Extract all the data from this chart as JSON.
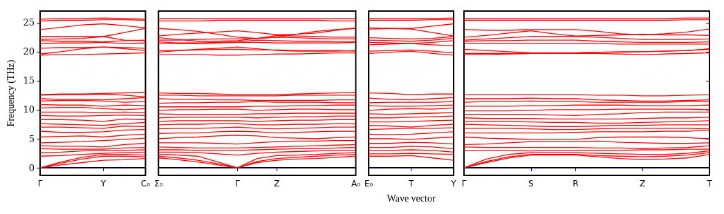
{
  "chart_data": [
    {
      "type": "line",
      "ylabel": "Frequency (THz)",
      "categories": [
        "Γ",
        null,
        null,
        "Y",
        null,
        "C₀"
      ],
      "ylim": [
        -1.3,
        27
      ],
      "yticks": [
        0,
        5,
        10,
        15,
        20,
        25
      ],
      "marker": "none",
      "line_style": "solid",
      "ref_lines": [
        {
          "axis": "y",
          "value": 0,
          "color": "#0000ff",
          "line_style": "dotted"
        }
      ],
      "series": [
        {
          "color": "#ff0000",
          "values": [
            0,
            0.5,
            0.9,
            1.3,
            1.4,
            1.6
          ]
        },
        {
          "color": "#ff0000",
          "values": [
            0,
            0.8,
            1.5,
            2.0,
            2.0,
            1.9
          ]
        },
        {
          "color": "#ff0000",
          "values": [
            0,
            1.0,
            1.8,
            2.3,
            2.3,
            2.2
          ]
        },
        {
          "color": "#ff0000",
          "values": [
            2.0,
            2.1,
            2.3,
            2.5,
            2.6,
            2.7
          ]
        },
        {
          "color": "#ff0000",
          "values": [
            2.6,
            2.7,
            2.9,
            3.0,
            3.0,
            3.1
          ]
        },
        {
          "color": "#ff0000",
          "values": [
            3.3,
            3.2,
            3.2,
            3.2,
            3.4,
            3.5
          ]
        },
        {
          "color": "#ff0000",
          "values": [
            3.8,
            3.7,
            3.7,
            3.6,
            4.0,
            4.2
          ]
        },
        {
          "color": "#ff0000",
          "values": [
            4.3,
            4.4,
            4.5,
            4.7,
            4.9,
            5.1
          ]
        },
        {
          "color": "#ff0000",
          "values": [
            5.3,
            5.4,
            5.5,
            5.3,
            5.6,
            5.8
          ]
        },
        {
          "color": "#ff0000",
          "values": [
            6.3,
            6.1,
            6.1,
            6.2,
            6.5,
            6.6
          ]
        },
        {
          "color": "#ff0000",
          "values": [
            7.0,
            7.0,
            6.9,
            6.8,
            7.2,
            7.1
          ]
        },
        {
          "color": "#ff0000",
          "values": [
            7.6,
            7.5,
            7.4,
            7.3,
            7.6,
            7.8
          ]
        },
        {
          "color": "#ff0000",
          "values": [
            8.3,
            8.3,
            8.2,
            8.0,
            8.4,
            8.3
          ]
        },
        {
          "color": "#ff0000",
          "values": [
            9.0,
            8.9,
            8.9,
            9.0,
            9.1,
            9.0
          ]
        },
        {
          "color": "#ff0000",
          "values": [
            9.6,
            9.6,
            9.6,
            9.5,
            9.6,
            9.5
          ]
        },
        {
          "color": "#ff0000",
          "values": [
            10.3,
            10.4,
            10.4,
            10.2,
            10.0,
            10.2
          ]
        },
        {
          "color": "#ff0000",
          "values": [
            10.9,
            10.8,
            10.8,
            10.6,
            10.8,
            10.7
          ]
        },
        {
          "color": "#ff0000",
          "values": [
            11.5,
            11.6,
            11.6,
            11.5,
            11.3,
            11.4
          ]
        },
        {
          "color": "#ff0000",
          "values": [
            11.9,
            11.8,
            11.8,
            11.7,
            11.9,
            12.1
          ]
        },
        {
          "color": "#ff0000",
          "values": [
            12.5,
            12.6,
            12.6,
            12.7,
            12.5,
            12.2
          ]
        },
        {
          "color": "#ff0000",
          "values": [
            12.6,
            12.7,
            12.7,
            12.8,
            12.9,
            13.0
          ]
        },
        {
          "color": "#ff0000",
          "values": [
            19.4,
            19.5,
            19.5,
            19.6,
            19.7,
            19.8
          ]
        },
        {
          "color": "#ff0000",
          "values": [
            19.6,
            20.0,
            20.5,
            20.8,
            20.5,
            20.2
          ]
        },
        {
          "color": "#ff0000",
          "values": [
            20.6,
            20.7,
            20.7,
            20.8,
            20.7,
            20.6
          ]
        },
        {
          "color": "#ff0000",
          "values": [
            21.4,
            21.5,
            21.5,
            21.6,
            21.4,
            21.5
          ]
        },
        {
          "color": "#ff0000",
          "values": [
            21.9,
            21.8,
            21.8,
            21.7,
            21.9,
            22.0
          ]
        },
        {
          "color": "#ff0000",
          "values": [
            22.1,
            22.2,
            22.3,
            22.6,
            22.0,
            21.9
          ]
        },
        {
          "color": "#ff0000",
          "values": [
            22.6,
            22.6,
            22.6,
            22.6,
            23.3,
            24.0
          ]
        },
        {
          "color": "#ff0000",
          "values": [
            23.8,
            24.2,
            24.6,
            24.8,
            24.5,
            24.1
          ]
        },
        {
          "color": "#ff0000",
          "values": [
            25.3,
            25.4,
            25.4,
            25.5,
            25.5,
            25.4
          ]
        },
        {
          "color": "#ff0000",
          "values": [
            25.6,
            25.7,
            25.7,
            25.8,
            25.7,
            25.6
          ]
        }
      ]
    },
    {
      "type": "line",
      "categories": [
        "Σ₀",
        null,
        null,
        null,
        "Γ",
        null,
        "Z",
        null,
        null,
        null,
        "A₀"
      ],
      "ylim": [
        -1.3,
        27
      ],
      "yticks": [
        0,
        5,
        10,
        15,
        20,
        25
      ],
      "tick_labels": "x",
      "marker": "none",
      "line_style": "solid",
      "ref_lines": [
        {
          "axis": "y",
          "value": 0,
          "color": "#0000ff",
          "line_style": "dotted"
        }
      ],
      "series": [
        {
          "color": "#ff0000",
          "values": [
            1.7,
            1.4,
            1.0,
            0.5,
            0,
            0.9,
            1.3,
            1.5,
            1.6,
            1.8,
            2.0
          ]
        },
        {
          "color": "#ff0000",
          "values": [
            2.0,
            1.7,
            1.3,
            0.7,
            0,
            1.1,
            1.6,
            1.8,
            2.0,
            2.2,
            2.3
          ]
        },
        {
          "color": "#ff0000",
          "values": [
            2.3,
            2.2,
            2.0,
            1.0,
            0,
            1.6,
            2.1,
            2.2,
            2.3,
            2.5,
            2.6
          ]
        },
        {
          "color": "#ff0000",
          "values": [
            2.7,
            2.7,
            2.6,
            2.4,
            2.2,
            2.5,
            2.7,
            2.8,
            2.9,
            3.0,
            3.0
          ]
        },
        {
          "color": "#ff0000",
          "values": [
            3.1,
            3.1,
            3.0,
            3.0,
            3.0,
            3.1,
            3.2,
            3.3,
            3.3,
            3.4,
            3.5
          ]
        },
        {
          "color": "#ff0000",
          "values": [
            3.6,
            3.5,
            3.4,
            3.4,
            3.4,
            3.5,
            3.6,
            3.7,
            3.8,
            3.9,
            4.0
          ]
        },
        {
          "color": "#ff0000",
          "values": [
            4.3,
            4.3,
            4.3,
            4.2,
            4.1,
            4.3,
            4.5,
            4.6,
            4.6,
            4.7,
            4.7
          ]
        },
        {
          "color": "#ff0000",
          "values": [
            5.0,
            5.2,
            5.3,
            5.5,
            5.6,
            5.5,
            5.2,
            5.1,
            5.0,
            5.2,
            5.3
          ]
        },
        {
          "color": "#ff0000",
          "values": [
            5.9,
            6.0,
            6.0,
            6.2,
            6.3,
            6.2,
            6.0,
            6.1,
            6.2,
            6.3,
            6.3
          ]
        },
        {
          "color": "#ff0000",
          "values": [
            6.7,
            6.8,
            6.8,
            6.9,
            7.0,
            6.8,
            6.7,
            6.8,
            6.9,
            7.0,
            7.0
          ]
        },
        {
          "color": "#ff0000",
          "values": [
            7.4,
            7.5,
            7.5,
            7.6,
            7.6,
            7.4,
            7.4,
            7.5,
            7.5,
            7.6,
            7.6
          ]
        },
        {
          "color": "#ff0000",
          "values": [
            8.0,
            8.1,
            8.1,
            8.1,
            8.1,
            8.0,
            8.1,
            8.2,
            8.2,
            8.3,
            8.3
          ]
        },
        {
          "color": "#ff0000",
          "values": [
            8.6,
            8.7,
            8.7,
            8.7,
            8.7,
            8.6,
            8.7,
            8.8,
            8.8,
            8.9,
            8.9
          ]
        },
        {
          "color": "#ff0000",
          "values": [
            9.3,
            9.2,
            9.2,
            9.2,
            9.2,
            9.3,
            9.3,
            9.4,
            9.4,
            9.4,
            9.4
          ]
        },
        {
          "color": "#ff0000",
          "values": [
            9.9,
            10.0,
            10.0,
            10.1,
            10.1,
            9.9,
            10.0,
            10.1,
            10.1,
            10.0,
            10.0
          ]
        },
        {
          "color": "#ff0000",
          "values": [
            10.5,
            10.5,
            10.5,
            10.5,
            10.5,
            10.6,
            10.6,
            10.7,
            10.7,
            10.8,
            10.8
          ]
        },
        {
          "color": "#ff0000",
          "values": [
            11.1,
            11.2,
            11.2,
            11.3,
            11.3,
            11.4,
            11.3,
            11.3,
            11.3,
            11.2,
            11.2
          ]
        },
        {
          "color": "#ff0000",
          "values": [
            11.9,
            11.8,
            11.8,
            11.7,
            11.7,
            11.6,
            11.6,
            11.6,
            11.6,
            11.7,
            11.7
          ]
        },
        {
          "color": "#ff0000",
          "values": [
            12.5,
            12.5,
            12.4,
            12.4,
            12.4,
            12.4,
            12.4,
            12.5,
            12.5,
            12.5,
            12.5
          ]
        },
        {
          "color": "#ff0000",
          "values": [
            12.9,
            12.8,
            12.8,
            12.7,
            12.6,
            12.6,
            12.6,
            12.7,
            12.8,
            12.9,
            13.0
          ]
        },
        {
          "color": "#ff0000",
          "values": [
            19.5,
            19.5,
            19.5,
            19.4,
            19.4,
            19.5,
            19.6,
            19.6,
            19.7,
            19.8,
            19.8
          ]
        },
        {
          "color": "#ff0000",
          "values": [
            19.9,
            20.2,
            20.4,
            20.6,
            20.8,
            20.5,
            20.2,
            20.1,
            20.1,
            20.1,
            20.2
          ]
        },
        {
          "color": "#ff0000",
          "values": [
            20.2,
            20.2,
            20.3,
            20.4,
            20.4,
            20.3,
            20.3,
            20.2,
            20.2,
            20.2,
            20.1
          ]
        },
        {
          "color": "#ff0000",
          "values": [
            21.4,
            21.4,
            21.4,
            21.5,
            21.6,
            21.6,
            21.5,
            21.5,
            21.5,
            21.5,
            21.6
          ]
        },
        {
          "color": "#ff0000",
          "values": [
            21.7,
            21.5,
            21.5,
            21.6,
            21.7,
            22.0,
            21.9,
            21.8,
            21.8,
            21.7,
            21.7
          ]
        },
        {
          "color": "#ff0000",
          "values": [
            22.0,
            22.0,
            22.1,
            22.2,
            22.2,
            22.3,
            22.5,
            22.4,
            22.3,
            22.2,
            22.2
          ]
        },
        {
          "color": "#ff0000",
          "values": [
            22.4,
            22.1,
            21.8,
            21.8,
            21.9,
            22.3,
            22.8,
            22.7,
            22.6,
            22.5,
            22.5
          ]
        },
        {
          "color": "#ff0000",
          "values": [
            22.7,
            23.0,
            23.2,
            23.4,
            23.6,
            23.3,
            22.9,
            23.0,
            23.2,
            23.7,
            24.1
          ]
        },
        {
          "color": "#ff0000",
          "values": [
            24.0,
            23.8,
            23.5,
            23.0,
            22.5,
            22.3,
            22.5,
            23.0,
            23.5,
            23.8,
            24.0
          ]
        },
        {
          "color": "#ff0000",
          "values": [
            25.3,
            25.3,
            25.3,
            25.4,
            25.4,
            25.4,
            25.4,
            25.4,
            25.4,
            25.3,
            25.3
          ]
        },
        {
          "color": "#ff0000",
          "values": [
            25.7,
            25.7,
            25.7,
            25.7,
            25.7,
            25.7,
            25.7,
            25.7,
            25.7,
            25.7,
            25.7
          ]
        }
      ]
    },
    {
      "type": "line",
      "xlabel": "Wave vector",
      "categories": [
        "E₀",
        null,
        "T",
        null,
        "Y"
      ],
      "ylim": [
        -1.3,
        27
      ],
      "yticks": [
        0,
        5,
        10,
        15,
        20,
        25
      ],
      "tick_labels": "x",
      "marker": "none",
      "line_style": "solid",
      "ref_lines": [
        {
          "axis": "y",
          "value": 0,
          "color": "#0000ff",
          "line_style": "dotted"
        }
      ],
      "series": [
        {
          "color": "#ff0000",
          "values": [
            2.0,
            2.0,
            2.1,
            1.7,
            1.3
          ]
        },
        {
          "color": "#ff0000",
          "values": [
            2.4,
            2.4,
            2.5,
            2.4,
            2.3
          ]
        },
        {
          "color": "#ff0000",
          "values": [
            3.0,
            3.0,
            3.1,
            3.0,
            2.7
          ]
        },
        {
          "color": "#ff0000",
          "values": [
            3.5,
            3.5,
            3.7,
            3.6,
            3.3
          ]
        },
        {
          "color": "#ff0000",
          "values": [
            4.2,
            4.2,
            4.4,
            4.3,
            4.1
          ]
        },
        {
          "color": "#ff0000",
          "values": [
            5.0,
            5.0,
            4.9,
            5.1,
            5.3
          ]
        },
        {
          "color": "#ff0000",
          "values": [
            5.8,
            5.7,
            5.8,
            6.0,
            6.2
          ]
        },
        {
          "color": "#ff0000",
          "values": [
            6.6,
            6.7,
            6.8,
            6.8,
            6.9
          ]
        },
        {
          "color": "#ff0000",
          "values": [
            7.3,
            7.2,
            7.0,
            7.3,
            7.5
          ]
        },
        {
          "color": "#ff0000",
          "values": [
            7.9,
            7.9,
            8.0,
            8.1,
            8.2
          ]
        },
        {
          "color": "#ff0000",
          "values": [
            8.6,
            8.6,
            8.7,
            8.8,
            8.9
          ]
        },
        {
          "color": "#ff0000",
          "values": [
            9.3,
            9.2,
            9.3,
            9.4,
            9.5
          ]
        },
        {
          "color": "#ff0000",
          "values": [
            9.9,
            10.1,
            10.2,
            10.1,
            10.3
          ]
        },
        {
          "color": "#ff0000",
          "values": [
            10.7,
            10.6,
            10.6,
            10.7,
            10.8
          ]
        },
        {
          "color": "#ff0000",
          "values": [
            11.2,
            11.3,
            11.3,
            11.3,
            11.4
          ]
        },
        {
          "color": "#ff0000",
          "values": [
            12.0,
            11.8,
            11.7,
            11.9,
            12.1
          ]
        },
        {
          "color": "#ff0000",
          "values": [
            12.9,
            12.8,
            12.6,
            12.7,
            12.7
          ]
        },
        {
          "color": "#ff0000",
          "values": [
            19.7,
            19.9,
            20.1,
            19.7,
            19.4
          ]
        },
        {
          "color": "#ff0000",
          "values": [
            20.1,
            20.2,
            20.3,
            20.1,
            19.8
          ]
        },
        {
          "color": "#ff0000",
          "values": [
            21.2,
            21.3,
            21.4,
            21.2,
            21.0
          ]
        },
        {
          "color": "#ff0000",
          "values": [
            21.6,
            21.5,
            21.4,
            21.6,
            21.9
          ]
        },
        {
          "color": "#ff0000",
          "values": [
            22.0,
            21.9,
            21.8,
            22.0,
            22.3
          ]
        },
        {
          "color": "#ff0000",
          "values": [
            22.4,
            22.3,
            22.2,
            22.3,
            22.6
          ]
        },
        {
          "color": "#ff0000",
          "values": [
            24.1,
            24.0,
            23.9,
            23.3,
            22.7
          ]
        },
        {
          "color": "#ff0000",
          "values": [
            23.9,
            24.0,
            24.0,
            24.4,
            24.8
          ]
        },
        {
          "color": "#ff0000",
          "values": [
            25.4,
            25.4,
            25.4,
            25.5,
            25.5
          ]
        },
        {
          "color": "#ff0000",
          "values": [
            25.7,
            25.7,
            25.7,
            25.7,
            25.8
          ]
        }
      ]
    },
    {
      "type": "line",
      "categories": [
        "Γ",
        null,
        null,
        "S",
        null,
        "R",
        null,
        null,
        "Z",
        null,
        null,
        "T"
      ],
      "ylim": [
        -1.3,
        27
      ],
      "yticks": [
        0,
        5,
        10,
        15,
        20,
        25
      ],
      "tick_labels": "x",
      "marker": "none",
      "line_style": "solid",
      "ref_lines": [
        {
          "axis": "y",
          "value": 0,
          "color": "#0000ff",
          "line_style": "dotted"
        }
      ],
      "series": [
        {
          "color": "#ff0000",
          "values": [
            0,
            0.9,
            1.7,
            2.2,
            2.2,
            2.2,
            1.9,
            1.6,
            1.4,
            1.5,
            1.7,
            2.3
          ]
        },
        {
          "color": "#ff0000",
          "values": [
            0,
            1.1,
            1.9,
            2.3,
            2.3,
            2.3,
            2.1,
            2.0,
            1.9,
            2.0,
            2.2,
            2.6
          ]
        },
        {
          "color": "#ff0000",
          "values": [
            0,
            1.5,
            2.3,
            2.6,
            2.6,
            2.6,
            2.5,
            2.4,
            2.3,
            2.3,
            2.5,
            2.9
          ]
        },
        {
          "color": "#ff0000",
          "values": [
            3.0,
            3.0,
            3.0,
            2.9,
            3.0,
            3.0,
            3.0,
            3.0,
            3.1,
            3.1,
            3.2,
            3.2
          ]
        },
        {
          "color": "#ff0000",
          "values": [
            3.6,
            3.5,
            3.5,
            3.5,
            3.5,
            3.5,
            3.4,
            3.4,
            3.3,
            3.4,
            3.5,
            3.8
          ]
        },
        {
          "color": "#ff0000",
          "values": [
            4.0,
            4.1,
            4.3,
            4.5,
            4.5,
            4.5,
            4.6,
            4.4,
            4.3,
            4.2,
            4.2,
            4.3
          ]
        },
        {
          "color": "#ff0000",
          "values": [
            5.3,
            5.1,
            5.0,
            4.9,
            4.9,
            4.9,
            5.2,
            5.3,
            5.3,
            5.3,
            5.2,
            5.0
          ]
        },
        {
          "color": "#ff0000",
          "values": [
            6.0,
            6.0,
            6.0,
            6.0,
            6.0,
            6.1,
            6.2,
            6.2,
            6.2,
            6.3,
            6.3,
            6.5
          ]
        },
        {
          "color": "#ff0000",
          "values": [
            6.8,
            6.8,
            6.8,
            6.7,
            6.6,
            6.6,
            6.7,
            6.8,
            6.8,
            6.8,
            6.8,
            6.7
          ]
        },
        {
          "color": "#ff0000",
          "values": [
            7.5,
            7.4,
            7.3,
            7.2,
            7.1,
            7.1,
            7.2,
            7.3,
            7.3,
            7.4,
            7.4,
            7.4
          ]
        },
        {
          "color": "#ff0000",
          "values": [
            8.0,
            8.0,
            8.0,
            7.9,
            7.8,
            7.8,
            7.7,
            7.7,
            7.8,
            7.9,
            8.0,
            8.1
          ]
        },
        {
          "color": "#ff0000",
          "values": [
            8.6,
            8.5,
            8.5,
            8.5,
            8.4,
            8.4,
            8.4,
            8.4,
            8.5,
            8.6,
            8.6,
            8.7
          ]
        },
        {
          "color": "#ff0000",
          "values": [
            9.2,
            9.2,
            9.2,
            9.2,
            9.1,
            9.0,
            9.2,
            9.3,
            9.5,
            9.6,
            9.6,
            9.6
          ]
        },
        {
          "color": "#ff0000",
          "values": [
            9.8,
            9.8,
            9.8,
            9.9,
            10.0,
            10.0,
            10.0,
            10.1,
            10.1,
            10.1,
            10.1,
            10.0
          ]
        },
        {
          "color": "#ff0000",
          "values": [
            10.6,
            10.6,
            10.6,
            10.7,
            10.7,
            10.8,
            10.8,
            10.8,
            10.7,
            10.7,
            10.7,
            10.8
          ]
        },
        {
          "color": "#ff0000",
          "values": [
            11.3,
            11.4,
            11.4,
            11.5,
            11.4,
            11.4,
            11.3,
            11.3,
            11.3,
            11.3,
            11.4,
            11.4
          ]
        },
        {
          "color": "#ff0000",
          "values": [
            11.9,
            11.9,
            11.9,
            12.0,
            11.9,
            11.9,
            11.7,
            11.6,
            11.5,
            11.5,
            11.6,
            11.7
          ]
        },
        {
          "color": "#ff0000",
          "values": [
            12.6,
            12.6,
            12.6,
            12.6,
            12.6,
            12.6,
            12.5,
            12.5,
            12.4,
            12.4,
            12.5,
            12.6
          ]
        },
        {
          "color": "#ff0000",
          "values": [
            19.5,
            19.5,
            19.6,
            19.7,
            19.7,
            19.7,
            19.7,
            19.6,
            19.5,
            19.6,
            19.7,
            19.8
          ]
        },
        {
          "color": "#ff0000",
          "values": [
            19.7,
            19.7,
            19.7,
            19.8,
            19.8,
            19.8,
            19.9,
            20.0,
            20.0,
            20.1,
            20.2,
            20.4
          ]
        },
        {
          "color": "#ff0000",
          "values": [
            20.4,
            20.2,
            20.0,
            19.8,
            19.8,
            19.8,
            19.9,
            19.9,
            20.0,
            20.1,
            20.2,
            20.5
          ]
        },
        {
          "color": "#ff0000",
          "values": [
            21.4,
            21.4,
            21.4,
            21.4,
            21.4,
            21.4,
            21.4,
            21.3,
            21.3,
            21.3,
            21.3,
            21.3
          ]
        },
        {
          "color": "#ff0000",
          "values": [
            21.8,
            21.9,
            21.9,
            22.0,
            22.0,
            22.0,
            21.8,
            21.7,
            21.6,
            21.6,
            21.6,
            21.7
          ]
        },
        {
          "color": "#ff0000",
          "values": [
            22.0,
            22.2,
            22.4,
            22.6,
            22.6,
            22.6,
            22.5,
            22.3,
            22.1,
            22.1,
            22.1,
            22.2
          ]
        },
        {
          "color": "#ff0000",
          "values": [
            22.5,
            22.8,
            23.2,
            23.6,
            23.1,
            22.7,
            22.8,
            22.9,
            23.0,
            22.9,
            22.9,
            22.8
          ]
        },
        {
          "color": "#ff0000",
          "values": [
            23.8,
            23.7,
            23.7,
            23.8,
            23.8,
            23.8,
            23.5,
            23.1,
            22.9,
            23.1,
            23.4,
            23.9
          ]
        },
        {
          "color": "#ff0000",
          "values": [
            25.4,
            25.4,
            25.4,
            25.4,
            25.4,
            25.4,
            25.4,
            25.4,
            25.4,
            25.4,
            25.5,
            25.5
          ]
        },
        {
          "color": "#ff0000",
          "values": [
            25.7,
            25.7,
            25.7,
            25.7,
            25.7,
            25.7,
            25.7,
            25.7,
            25.7,
            25.7,
            25.8,
            25.8
          ]
        }
      ]
    }
  ]
}
